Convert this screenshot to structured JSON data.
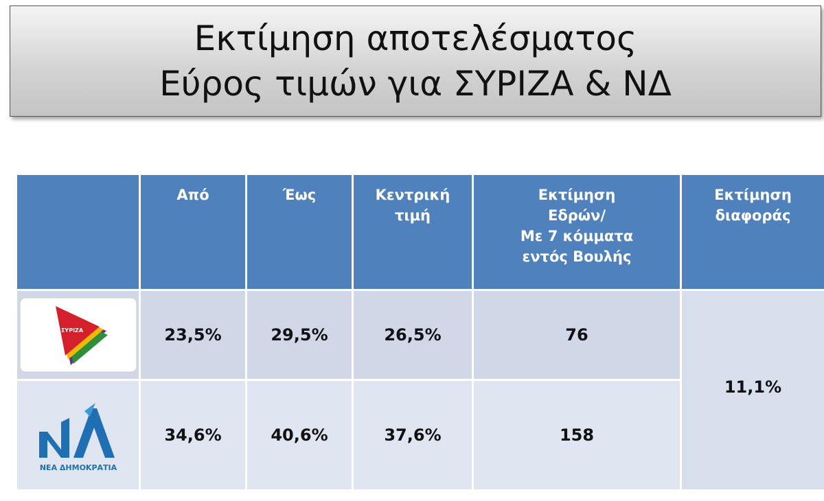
{
  "title": [
    "Εκτίμηση αποτελέσματος",
    "Εύρος τιμών για ΣΥΡΙΖΑ & ΝΔ"
  ],
  "table": {
    "header": [
      [
        "Από"
      ],
      [
        "Έως"
      ],
      [
        "Κεντρική",
        "τιμή"
      ],
      [
        "Εκτίμηση",
        "Εδρών/",
        "Με 7 κόμματα",
        "εντός Βουλής"
      ],
      [
        "Εκτίμηση",
        "διαφοράς"
      ]
    ],
    "rows": [
      {
        "party_logo_text": "ΣΥΡΙΖΑ",
        "cells": [
          "23,5%",
          "29,5%",
          "26,5%",
          "76"
        ]
      },
      {
        "party_logo_text": "ΝΕΑ ΔΗΜΟΚΡΑΤΙΑ",
        "cells": [
          "34,6%",
          "40,6%",
          "37,6%",
          "158"
        ]
      }
    ],
    "difference": "11,1%"
  }
}
